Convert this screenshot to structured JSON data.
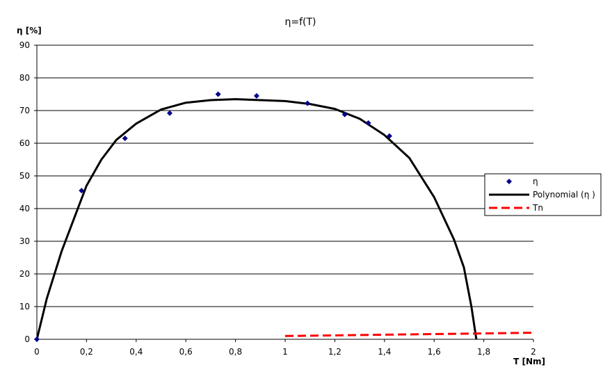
{
  "chart_data": {
    "type": "scatter",
    "title": "η=f(T)",
    "xlabel": "T [Nm]",
    "ylabel": "η [%]",
    "xlim": [
      0,
      2
    ],
    "ylim": [
      0,
      90
    ],
    "x_ticks": [
      "0",
      "0,2",
      "0,4",
      "0,6",
      "0,8",
      "1",
      "1,2",
      "1,4",
      "1,6",
      "1,8",
      "2"
    ],
    "y_ticks": [
      "0",
      "10",
      "20",
      "30",
      "40",
      "50",
      "60",
      "70",
      "80",
      "90"
    ],
    "grid": "horizontal",
    "legend_position": "right",
    "series": [
      {
        "name": "η",
        "kind": "markers",
        "color": "#00008B",
        "points": [
          [
            0,
            0
          ],
          [
            0.18,
            45.5
          ],
          [
            0.355,
            61.5
          ],
          [
            0.535,
            69.2
          ],
          [
            0.73,
            75.0
          ],
          [
            0.885,
            74.5
          ],
          [
            1.09,
            72.2
          ],
          [
            1.24,
            68.8
          ],
          [
            1.335,
            66.2
          ],
          [
            1.42,
            62.2
          ]
        ]
      },
      {
        "name": "Polynomial (η )",
        "kind": "line",
        "color": "#000000",
        "points": [
          [
            0,
            0
          ],
          [
            0.04,
            12.5
          ],
          [
            0.1,
            27
          ],
          [
            0.16,
            39
          ],
          [
            0.2,
            47
          ],
          [
            0.26,
            55
          ],
          [
            0.32,
            61
          ],
          [
            0.4,
            66
          ],
          [
            0.5,
            70.3
          ],
          [
            0.6,
            72.4
          ],
          [
            0.7,
            73.2
          ],
          [
            0.8,
            73.5
          ],
          [
            0.9,
            73.2
          ],
          [
            1.0,
            72.9
          ],
          [
            1.1,
            72.0
          ],
          [
            1.2,
            70.5
          ],
          [
            1.3,
            67.5
          ],
          [
            1.4,
            62.5
          ],
          [
            1.5,
            55.5
          ],
          [
            1.6,
            43.5
          ],
          [
            1.68,
            30.5
          ],
          [
            1.72,
            22
          ],
          [
            1.75,
            10
          ],
          [
            1.77,
            0
          ]
        ]
      },
      {
        "name": "Tn",
        "kind": "dashed-line",
        "color": "#FF0000",
        "points": [
          [
            1.0,
            1.0
          ],
          [
            1.3,
            1.3
          ],
          [
            1.6,
            1.6
          ],
          [
            2.0,
            2.0
          ]
        ]
      }
    ]
  }
}
